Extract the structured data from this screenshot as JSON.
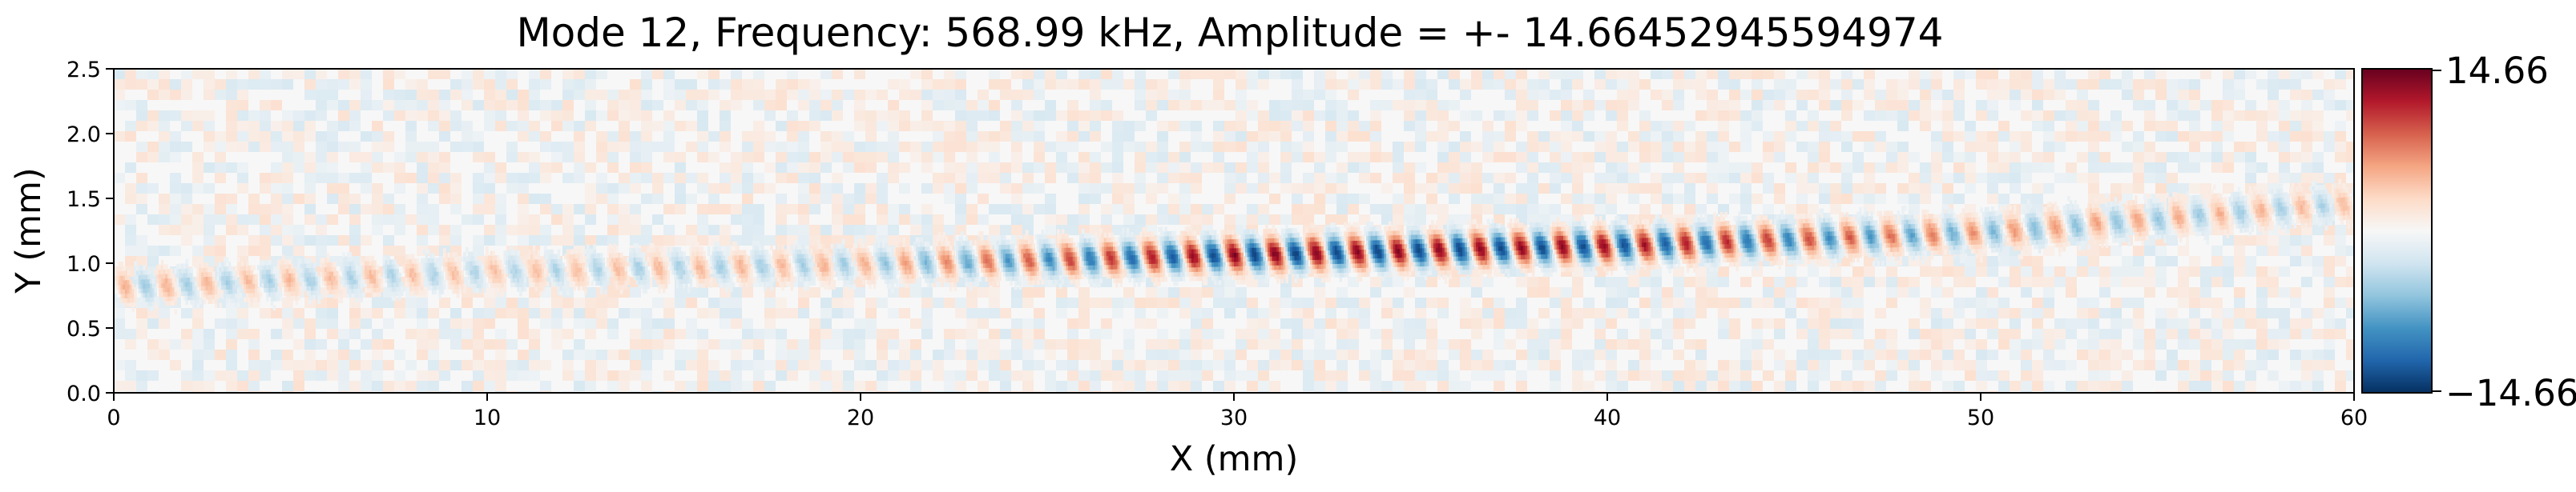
{
  "chart_data": {
    "type": "heatmap",
    "title": "Mode 12, Frequency: 568.99 kHz, Amplitude = +- 14.66452945594974",
    "xlabel": "X (mm)",
    "ylabel": "Y (mm)",
    "xlim": [
      0,
      60
    ],
    "ylim": [
      0,
      2.5
    ],
    "x_ticks": [
      "0",
      "10",
      "20",
      "30",
      "40",
      "50",
      "60"
    ],
    "y_ticks": [
      "0.0",
      "0.5",
      "1.0",
      "1.5",
      "2.0",
      "2.5"
    ],
    "colormap": "RdBu_r",
    "colorbar": {
      "min": -14.66452945594974,
      "max": 14.66452945594974,
      "max_label": "14.66",
      "min_label": "−14.66",
      "colors": [
        "#67001f",
        "#b2182b",
        "#d6604d",
        "#f4a582",
        "#fddbc7",
        "#f7f7f7",
        "#d1e5f0",
        "#92c5de",
        "#4393c3",
        "#2166ac",
        "#053061"
      ]
    },
    "wave_band": {
      "description_x_mm": [
        0,
        10,
        20,
        30,
        40,
        50,
        60
      ],
      "center_y_mm": [
        0.8,
        0.92,
        0.98,
        1.05,
        1.12,
        1.22,
        1.45
      ],
      "peak_amplitude_normalized": [
        0.35,
        0.3,
        0.35,
        0.95,
        0.9,
        0.45,
        0.3
      ],
      "wavelength_mm": 1.1
    }
  }
}
